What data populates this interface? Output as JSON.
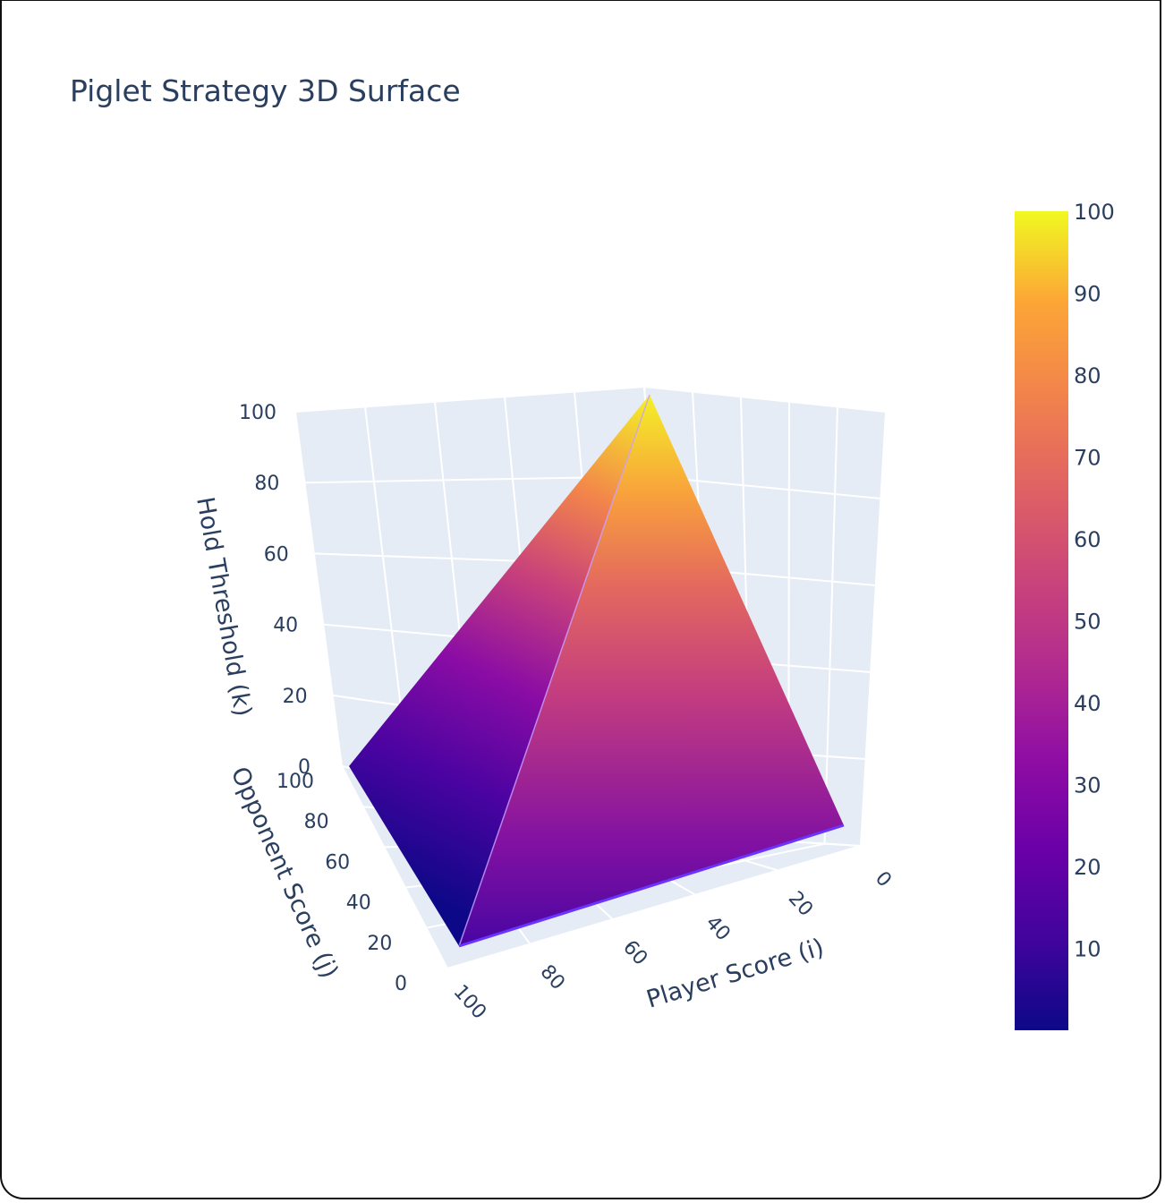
{
  "title": "Piglet Strategy 3D Surface",
  "chart_data": {
    "type": "surface",
    "title": "Piglet Strategy 3D Surface",
    "x_axis": {
      "label": "Player Score (i)",
      "range": [
        0,
        100
      ],
      "ticks": [
        "0",
        "20",
        "40",
        "60",
        "80",
        "100"
      ]
    },
    "y_axis": {
      "label": "Opponent Score (j)",
      "range": [
        0,
        100
      ],
      "ticks": [
        "0",
        "20",
        "40",
        "60",
        "80",
        "100"
      ]
    },
    "z_axis": {
      "label": "Hold Threshold (k)",
      "range": [
        0,
        100
      ],
      "ticks": [
        "0",
        "20",
        "40",
        "60",
        "80",
        "100"
      ]
    },
    "surface_vertices": [
      {
        "i": 100,
        "j": 100,
        "k": 0
      },
      {
        "i": 100,
        "j": 0,
        "k": 0
      },
      {
        "i": 0,
        "j": 0,
        "k": 0
      },
      {
        "i": 0,
        "j": 100,
        "k": 100
      }
    ],
    "colorscale": "plasma",
    "colorbar": {
      "range": [
        0,
        100
      ],
      "ticks": [
        "10",
        "20",
        "30",
        "40",
        "50",
        "60",
        "70",
        "80",
        "90",
        "100"
      ]
    },
    "colors": {
      "low": "#0d0887",
      "mid": "#9c179e",
      "high": "#f0f921",
      "grid_bg": "#e5ecf6",
      "text": "#2a3f5f"
    }
  }
}
